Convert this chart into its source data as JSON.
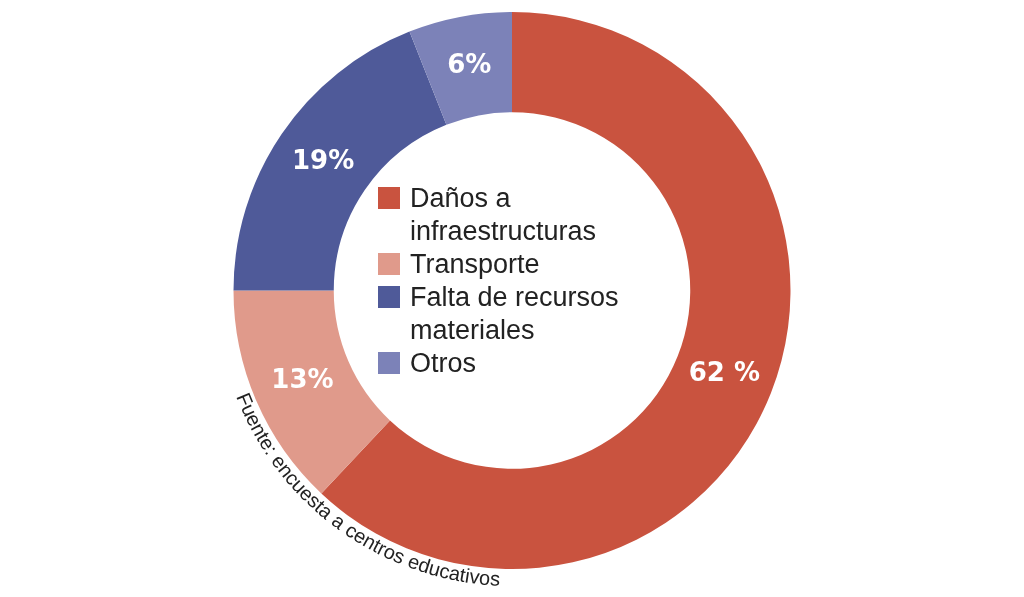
{
  "chart_data": {
    "type": "donut",
    "categories": [
      "Daños a infraestructuras",
      "Transporte",
      "Falta de recursos materiales",
      "Otros"
    ],
    "values": [
      62,
      13,
      19,
      6
    ],
    "colors": [
      "#c9533f",
      "#e09a8b",
      "#4f5a99",
      "#7c82b8"
    ],
    "value_labels": [
      "62 %",
      "13%",
      "19%",
      "6%"
    ],
    "legend": "center",
    "annotations": [
      "Fuente: encuesta a centros educativos"
    ]
  }
}
